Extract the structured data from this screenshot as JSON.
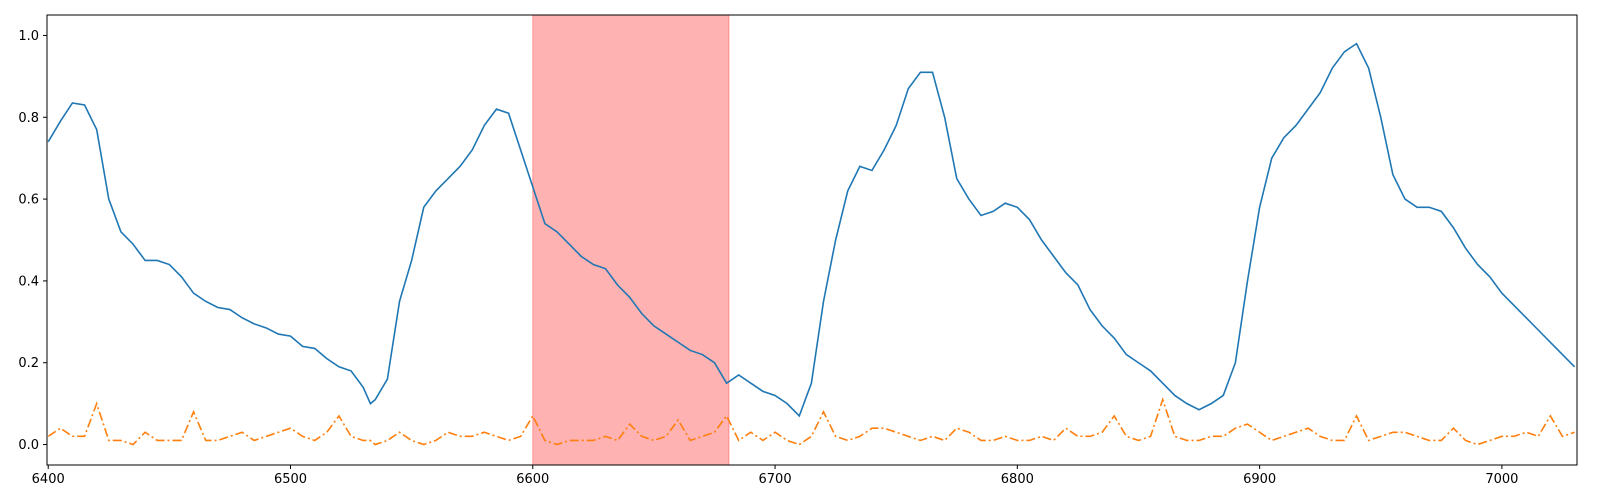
{
  "chart_data": {
    "type": "line",
    "x": [
      6400,
      6405,
      6410,
      6415,
      6420,
      6425,
      6430,
      6435,
      6440,
      6445,
      6450,
      6455,
      6460,
      6465,
      6470,
      6475,
      6480,
      6485,
      6490,
      6495,
      6500,
      6505,
      6510,
      6515,
      6520,
      6525,
      6530,
      6533,
      6535,
      6540,
      6545,
      6550,
      6555,
      6560,
      6565,
      6570,
      6575,
      6580,
      6585,
      6590,
      6595,
      6600,
      6605,
      6610,
      6615,
      6620,
      6625,
      6630,
      6635,
      6640,
      6645,
      6650,
      6655,
      6660,
      6665,
      6670,
      6675,
      6680,
      6685,
      6690,
      6695,
      6700,
      6705,
      6710,
      6715,
      6720,
      6725,
      6730,
      6735,
      6740,
      6745,
      6750,
      6755,
      6760,
      6765,
      6770,
      6775,
      6780,
      6785,
      6790,
      6795,
      6800,
      6805,
      6810,
      6815,
      6820,
      6825,
      6830,
      6835,
      6840,
      6845,
      6850,
      6855,
      6860,
      6865,
      6870,
      6875,
      6880,
      6885,
      6890,
      6895,
      6900,
      6905,
      6910,
      6915,
      6920,
      6925,
      6930,
      6935,
      6940,
      6945,
      6950,
      6955,
      6960,
      6965,
      6970,
      6975,
      6980,
      6985,
      6990,
      6995,
      7000,
      7005,
      7010,
      7015,
      7020,
      7025,
      7030
    ],
    "series": [
      {
        "color": "#1f77b4",
        "linestyle": "solid",
        "values": [
          0.74,
          0.79,
          0.835,
          0.83,
          0.77,
          0.6,
          0.52,
          0.49,
          0.45,
          0.45,
          0.44,
          0.41,
          0.37,
          0.35,
          0.335,
          0.33,
          0.31,
          0.295,
          0.285,
          0.27,
          0.265,
          0.24,
          0.235,
          0.21,
          0.19,
          0.18,
          0.14,
          0.1,
          0.11,
          0.16,
          0.35,
          0.45,
          0.58,
          0.62,
          0.65,
          0.68,
          0.72,
          0.78,
          0.82,
          0.81,
          0.72,
          0.63,
          0.54,
          0.52,
          0.49,
          0.46,
          0.44,
          0.43,
          0.39,
          0.36,
          0.32,
          0.29,
          0.27,
          0.25,
          0.23,
          0.22,
          0.2,
          0.15,
          0.17,
          0.15,
          0.13,
          0.12,
          0.1,
          0.07,
          0.15,
          0.35,
          0.5,
          0.62,
          0.68,
          0.67,
          0.72,
          0.78,
          0.87,
          0.91,
          0.91,
          0.8,
          0.65,
          0.6,
          0.56,
          0.57,
          0.59,
          0.58,
          0.55,
          0.5,
          0.46,
          0.42,
          0.39,
          0.33,
          0.29,
          0.26,
          0.22,
          0.2,
          0.18,
          0.15,
          0.12,
          0.1,
          0.085,
          0.1,
          0.12,
          0.2,
          0.4,
          0.58,
          0.7,
          0.75,
          0.78,
          0.82,
          0.86,
          0.92,
          0.96,
          0.98,
          0.92,
          0.8,
          0.66,
          0.6,
          0.58,
          0.58,
          0.57,
          0.53,
          0.48,
          0.44,
          0.41,
          0.37,
          0.34,
          0.31,
          0.28,
          0.25,
          0.22,
          0.19
        ]
      },
      {
        "color": "#ff7f0e",
        "linestyle": "dashdot",
        "values": [
          0.02,
          0.04,
          0.02,
          0.02,
          0.1,
          0.01,
          0.01,
          0.0,
          0.03,
          0.01,
          0.01,
          0.01,
          0.08,
          0.01,
          0.01,
          0.02,
          0.03,
          0.01,
          0.02,
          0.03,
          0.04,
          0.02,
          0.01,
          0.03,
          0.07,
          0.02,
          0.01,
          0.01,
          0.0,
          0.01,
          0.03,
          0.01,
          0.0,
          0.01,
          0.03,
          0.02,
          0.02,
          0.03,
          0.02,
          0.01,
          0.02,
          0.07,
          0.01,
          0.0,
          0.01,
          0.01,
          0.01,
          0.02,
          0.01,
          0.05,
          0.02,
          0.01,
          0.02,
          0.06,
          0.01,
          0.02,
          0.03,
          0.07,
          0.01,
          0.03,
          0.01,
          0.03,
          0.01,
          0.0,
          0.02,
          0.08,
          0.02,
          0.01,
          0.02,
          0.04,
          0.04,
          0.03,
          0.02,
          0.01,
          0.02,
          0.01,
          0.04,
          0.03,
          0.01,
          0.01,
          0.02,
          0.01,
          0.01,
          0.02,
          0.01,
          0.04,
          0.02,
          0.02,
          0.03,
          0.07,
          0.02,
          0.01,
          0.02,
          0.11,
          0.02,
          0.01,
          0.01,
          0.02,
          0.02,
          0.04,
          0.05,
          0.03,
          0.01,
          0.02,
          0.03,
          0.04,
          0.02,
          0.01,
          0.01,
          0.07,
          0.01,
          0.02,
          0.03,
          0.03,
          0.02,
          0.01,
          0.01,
          0.04,
          0.01,
          0.0,
          0.01,
          0.02,
          0.02,
          0.03,
          0.02,
          0.07,
          0.02,
          0.03
        ]
      }
    ],
    "span": {
      "range": [
        6600,
        6681
      ],
      "color": "#ff0000",
      "opacity": 0.3
    },
    "xlim": [
      6399.5,
      7031
    ],
    "xticks": [
      6400,
      6500,
      6600,
      6700,
      6800,
      6900,
      7000
    ],
    "ylim": [
      -0.05,
      1.05
    ],
    "yticks": [
      {
        "value": 0,
        "label": "0.0"
      },
      0.2,
      0.4,
      0.6,
      0.8,
      {
        "value": 1,
        "label": "1.0"
      }
    ],
    "grid": false
  }
}
